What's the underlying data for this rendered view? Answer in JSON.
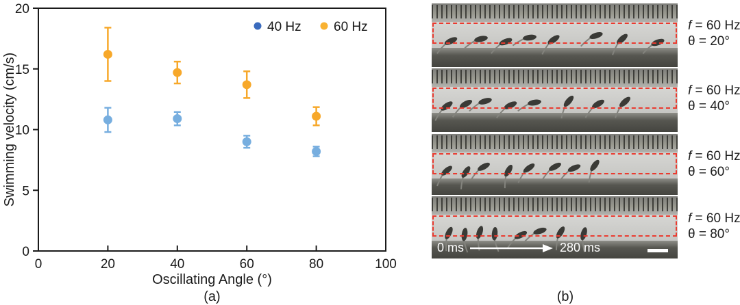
{
  "figure": {
    "panel_a_caption": "(a)",
    "panel_b_caption": "(b)"
  },
  "panel_a": {
    "chart_data": {
      "type": "scatter",
      "title": "",
      "xlabel": "Oscillating Angle (°)",
      "ylabel": "Swimming velocity (cm/s)",
      "xlim": [
        0,
        100
      ],
      "ylim": [
        0,
        20
      ],
      "xticks": [
        0,
        20,
        40,
        60,
        80,
        100
      ],
      "yticks": [
        0,
        5,
        10,
        15,
        20
      ],
      "grid": false,
      "legend_position": "top-right",
      "x": [
        20,
        40,
        60,
        80
      ],
      "series": [
        {
          "name": "40 Hz",
          "values": [
            10.8,
            10.9,
            9.0,
            8.2
          ],
          "errors": [
            1.0,
            0.55,
            0.5,
            0.4
          ],
          "marker_color": "#77AEDF",
          "legend_color": "#3A6BBE"
        },
        {
          "name": "60 Hz",
          "values": [
            16.2,
            14.7,
            13.7,
            11.1
          ],
          "errors": [
            2.2,
            0.9,
            1.1,
            0.75
          ],
          "marker_color": "#F7A82A",
          "legend_color": "#F9B232"
        }
      ]
    }
  },
  "panel_b": {
    "time_start": "0 ms",
    "time_end": "280 ms",
    "strips": [
      {
        "f_symbol": "f",
        "f_rest": " = 60 Hz",
        "theta_label": "θ = 20°",
        "fish": [
          [
            28,
            55,
            -25
          ],
          [
            72,
            52,
            -12
          ],
          [
            108,
            56,
            -22
          ],
          [
            143,
            50,
            -8
          ],
          [
            178,
            53,
            -35
          ],
          [
            240,
            47,
            -18
          ],
          [
            278,
            52,
            -42
          ],
          [
            330,
            57,
            -20
          ]
        ]
      },
      {
        "f_symbol": "f",
        "f_rest": " = 60 Hz",
        "theta_label": "θ = 40°",
        "fish": [
          [
            22,
            55,
            -35
          ],
          [
            50,
            52,
            -28
          ],
          [
            78,
            48,
            -15
          ],
          [
            115,
            54,
            -25
          ],
          [
            150,
            50,
            -10
          ],
          [
            200,
            48,
            -50
          ],
          [
            243,
            52,
            -30
          ],
          [
            282,
            49,
            -42
          ]
        ]
      },
      {
        "f_symbol": "f",
        "f_rest": " = 60 Hz",
        "theta_label": "θ = 60°",
        "fish": [
          [
            22,
            56,
            -42
          ],
          [
            50,
            58,
            -58
          ],
          [
            76,
            50,
            -30
          ],
          [
            112,
            56,
            -62
          ],
          [
            142,
            52,
            -38
          ],
          [
            180,
            50,
            -30
          ],
          [
            208,
            52,
            -25
          ],
          [
            238,
            48,
            -55
          ]
        ]
      },
      {
        "f_symbol": "f",
        "f_rest": " = 60 Hz",
        "theta_label": "θ = 80°",
        "fish": [
          [
            25,
            55,
            -65
          ],
          [
            48,
            57,
            -82
          ],
          [
            70,
            54,
            -72
          ],
          [
            92,
            56,
            -85
          ],
          [
            130,
            58,
            -28
          ],
          [
            158,
            52,
            -18
          ],
          [
            188,
            54,
            -60
          ],
          [
            222,
            56,
            -75
          ]
        ]
      }
    ]
  },
  "colors": {
    "axis": "#1A1A1A",
    "marker_blue": "#77AEDF",
    "legend_blue": "#3A6BBE",
    "marker_orange": "#F7A82A",
    "red_dash": "#EA3B30"
  }
}
